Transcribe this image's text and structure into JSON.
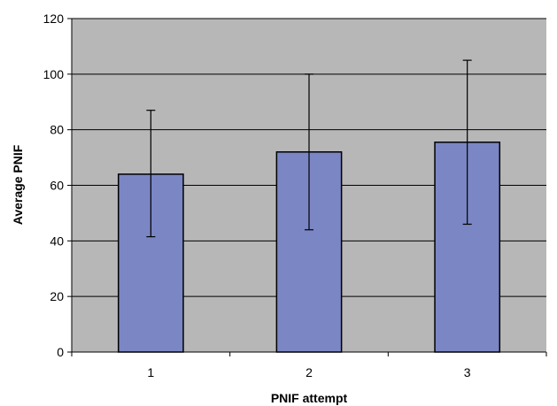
{
  "chart_data": {
    "type": "bar",
    "categories": [
      "1",
      "2",
      "3"
    ],
    "values": [
      64,
      72,
      75.5
    ],
    "error_bars": {
      "upper": [
        87,
        100,
        105
      ],
      "lower": [
        41.5,
        44,
        46
      ]
    },
    "title": "",
    "xlabel": "PNIF attempt",
    "ylabel": "Average PNIF",
    "ylim": [
      0,
      120
    ],
    "yticks": [
      "0",
      "20",
      "40",
      "60",
      "80",
      "100",
      "120"
    ],
    "grid": "horizontal",
    "legend": "none"
  },
  "colors": {
    "plot_background": "#b7b7b7",
    "bar_fill": "#7b86c4",
    "bar_stroke": "#000000",
    "gridline": "#000000"
  }
}
